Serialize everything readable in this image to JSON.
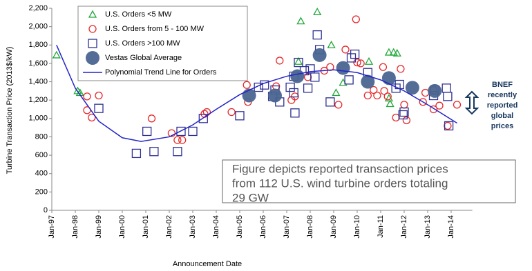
{
  "chart_data": {
    "type": "scatter",
    "x_label": "Announcement Date",
    "y_label": "Turbine Transaction Price (2013$/kW)",
    "xlim": [
      1997,
      2014.9
    ],
    "xticks": [
      {
        "value": 1997,
        "label": "Jan-97"
      },
      {
        "value": 1998,
        "label": "Jan-98"
      },
      {
        "value": 1999,
        "label": "Jan-99"
      },
      {
        "value": 2000,
        "label": "Jan-00"
      },
      {
        "value": 2001,
        "label": "Jan-01"
      },
      {
        "value": 2002,
        "label": "Jan-02"
      },
      {
        "value": 2003,
        "label": "Jan-03"
      },
      {
        "value": 2004,
        "label": "Jan-04"
      },
      {
        "value": 2005,
        "label": "Jan-05"
      },
      {
        "value": 2006,
        "label": "Jan-06"
      },
      {
        "value": 2007,
        "label": "Jan-07"
      },
      {
        "value": 2008,
        "label": "Jan-08"
      },
      {
        "value": 2009,
        "label": "Jan-09"
      },
      {
        "value": 2010,
        "label": "Jan-10"
      },
      {
        "value": 2011,
        "label": "Jan-11"
      },
      {
        "value": 2012,
        "label": "Jan-12"
      },
      {
        "value": 2013,
        "label": "Jan-13"
      },
      {
        "value": 2014,
        "label": "Jan-14"
      }
    ],
    "ylim": [
      0,
      2200
    ],
    "yticks": [
      0,
      200,
      400,
      600,
      800,
      {
        "value": 1000,
        "label": "1,000"
      },
      {
        "value": 1200,
        "label": "1,200"
      },
      {
        "value": 1400,
        "label": "1,400"
      },
      {
        "value": 1600,
        "label": "1,600"
      },
      {
        "value": 1800,
        "label": "1,800"
      },
      {
        "value": 2000,
        "label": "2,000"
      },
      {
        "value": 2200,
        "label": "2,200"
      }
    ],
    "series": [
      {
        "name": "U.S. Orders <5 MW",
        "marker": "triangle",
        "color": "#22a83a",
        "x": [
          1997.2,
          1998.1,
          1998.2,
          2007.5,
          2007.6,
          2008.3,
          2008.9,
          2009.1,
          2009.4,
          2010.5,
          2011.35,
          2011.55,
          2011.7,
          2011.35,
          2011.4
        ],
        "values": [
          1690,
          1300,
          1280,
          1620,
          2060,
          2160,
          1800,
          1280,
          1390,
          1620,
          1720,
          1720,
          1710,
          1220,
          1160
        ]
      },
      {
        "name": "U.S. Orders from 5 - 100 MW",
        "marker": "circle",
        "color": "#e8272a",
        "x": [
          1998.5,
          1998.5,
          1998.7,
          1999,
          2001.25,
          2002.1,
          2002.35,
          2002.55,
          2003.5,
          2003.6,
          2004.65,
          2005.3,
          2005.35,
          2006.7,
          2006.55,
          2007.2,
          2007.35,
          2007.9,
          2008.6,
          2008.85,
          2009.2,
          2009.5,
          2009.95,
          2010,
          2010.15,
          2010.45,
          2010.7,
          2010.85,
          2011.1,
          2011.15,
          2011.3,
          2011.65,
          2011.85,
          2012,
          2012.1,
          2012.8,
          2012.9,
          2013.25,
          2013.25,
          2013.5,
          2013.85,
          2014.25
        ],
        "values": [
          1240,
          1090,
          1010,
          1250,
          1000,
          840,
          765,
          765,
          1050,
          1070,
          1070,
          1365,
          1180,
          1630,
          1350,
          1200,
          1240,
          1450,
          1520,
          1560,
          1150,
          1750,
          2080,
          1610,
          1600,
          1250,
          1310,
          1250,
          1560,
          1300,
          1240,
          1010,
          1540,
          1150,
          980,
          1180,
          1280,
          1310,
          1100,
          1140,
          920,
          1150
        ]
      },
      {
        "name": "U.S. Orders >100 MW",
        "marker": "square",
        "color": "#2e3192",
        "x": [
          1999,
          2000.6,
          2001.05,
          2001.35,
          2002.35,
          2002.5,
          2003,
          2003.45,
          2005,
          2005.8,
          2006.05,
          2006.4,
          2006.5,
          2006.7,
          2007.15,
          2007.3,
          2007.35,
          2007.3,
          2007.5,
          2007.75,
          2007.9,
          2008,
          2008.2,
          2008.3,
          2008.4,
          2008.85,
          2009.65,
          2009.75,
          2009.9,
          2010.45,
          2011.65,
          2011.8,
          2012,
          2011.95,
          2013.25,
          2013.3,
          2013.8,
          2013.85,
          2013.9
        ],
        "values": [
          1110,
          620,
          860,
          640,
          640,
          860,
          860,
          1000,
          1030,
          1340,
          1365,
          1240,
          1310,
          1180,
          1340,
          1280,
          1060,
          1460,
          1610,
          1520,
          1330,
          1540,
          1450,
          1910,
          1750,
          1180,
          1420,
          1660,
          1700,
          1500,
          1330,
          1370,
          1070,
          1040,
          1250,
          1310,
          1330,
          1240,
          920
        ]
      },
      {
        "name": "Vestas Global Average",
        "marker": "dot",
        "color": "#4a6591",
        "x": [
          2005.4,
          2006.5,
          2007.45,
          2008.4,
          2009.4,
          2010.45,
          2011.35,
          2012.35,
          2013.3
        ],
        "values": [
          1250,
          1250,
          1460,
          1690,
          1550,
          1400,
          1440,
          1335,
          1300
        ]
      },
      {
        "name": "Polynomial Trend Line for Orders",
        "marker": "line",
        "color": "#2323c8",
        "x": [
          1997.2,
          1998,
          1999,
          2000,
          2000.8,
          2002,
          2003,
          2004,
          2005,
          2006,
          2007,
          2008,
          2009,
          2010,
          2011,
          2012,
          2013,
          2014.25
        ],
        "values": [
          1800,
          1330,
          970,
          790,
          750,
          800,
          930,
          1100,
          1260,
          1380,
          1460,
          1510,
          1530,
          1500,
          1420,
          1300,
          1150,
          950
        ]
      }
    ],
    "note": [
      "Figure depicts reported transaction prices",
      "from 112 U.S. wind turbine orders totaling",
      "29 GW"
    ],
    "side_note": [
      "BNEF",
      "recently",
      "reported",
      "global",
      "prices"
    ]
  }
}
